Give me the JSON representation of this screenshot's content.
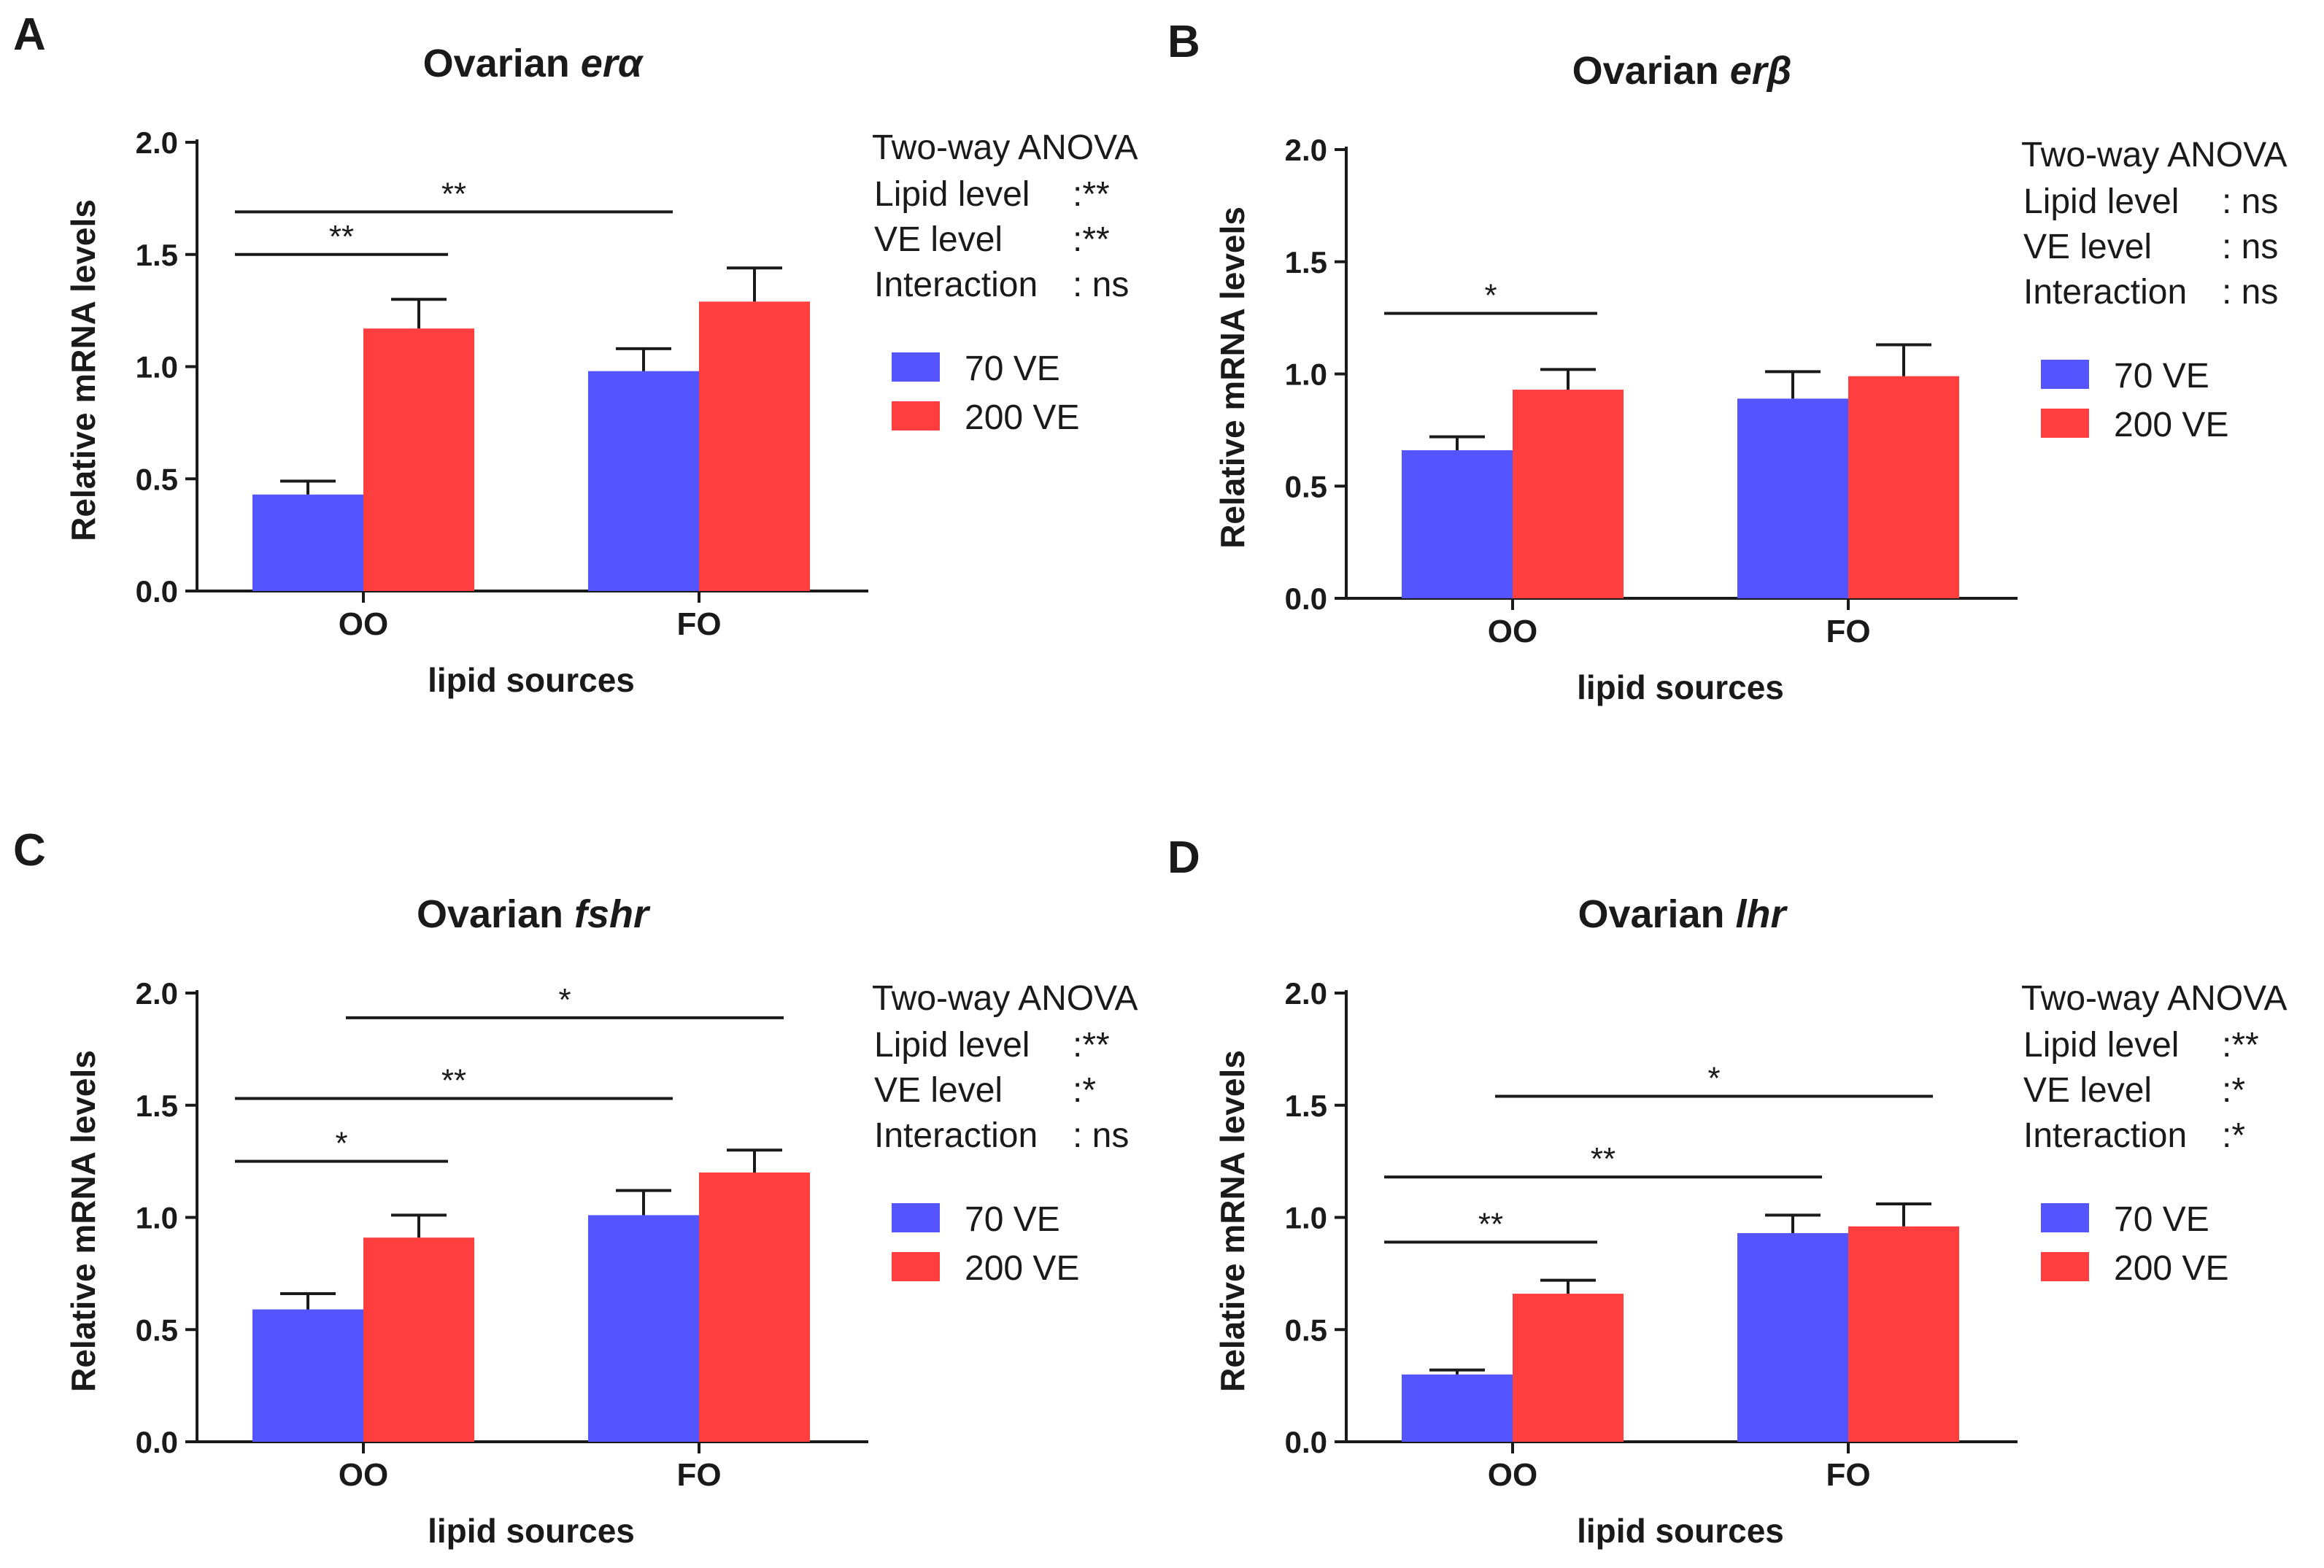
{
  "figure": {
    "legend": [
      {
        "name": "70   VE",
        "color": "#5555ff"
      },
      {
        "name": "200 VE",
        "color": "#ff3f3f"
      }
    ],
    "anova_title": "Two-way ANOVA"
  },
  "chart_data": [
    {
      "panel": "A",
      "type": "bar",
      "title_prefix": "Ovarian ",
      "title_gene": "erα",
      "xlabel": "lipid sources",
      "ylabel": "Relative mRNA  levels",
      "ylim": [
        0,
        2.0
      ],
      "yticks": [
        "0.0",
        "0.5",
        "1.0",
        "1.5",
        "2.0"
      ],
      "categories": [
        "OO",
        "FO"
      ],
      "series": [
        {
          "name": "70   VE",
          "values": [
            0.43,
            0.98
          ],
          "errors": [
            0.06,
            0.1
          ]
        },
        {
          "name": "200 VE",
          "values": [
            1.17,
            1.29
          ],
          "errors": [
            0.13,
            0.15
          ]
        }
      ],
      "significance": [
        {
          "from": [
            0,
            0
          ],
          "to": [
            0,
            1
          ],
          "label": "**",
          "y": 1.5
        },
        {
          "from": [
            0,
            0
          ],
          "to": [
            1,
            0
          ],
          "label": "**",
          "y": 1.69
        }
      ],
      "anova": [
        {
          "term": "Lipid level  ",
          "result": ":**"
        },
        {
          "term": "VE    level  ",
          "result": ":**"
        },
        {
          "term": "Interaction ",
          "result": ": ns"
        }
      ]
    },
    {
      "panel": "B",
      "type": "bar",
      "title_prefix": "Ovarian ",
      "title_gene": "erβ",
      "xlabel": "lipid sources",
      "ylabel": "Relative mRNA  levels",
      "ylim": [
        0,
        2.0
      ],
      "yticks": [
        "0.0",
        "0.5",
        "1.0",
        "1.5",
        "2.0"
      ],
      "categories": [
        "OO",
        "FO"
      ],
      "series": [
        {
          "name": "70   VE",
          "values": [
            0.66,
            0.89
          ],
          "errors": [
            0.06,
            0.12
          ]
        },
        {
          "name": "200 VE",
          "values": [
            0.93,
            0.99
          ],
          "errors": [
            0.09,
            0.14
          ]
        }
      ],
      "significance": [
        {
          "from": [
            0,
            0
          ],
          "to": [
            0,
            1
          ],
          "label": "*",
          "y": 1.27
        }
      ],
      "anova": [
        {
          "term": "Lipid level  ",
          "result": ": ns"
        },
        {
          "term": "VE    level  ",
          "result": ": ns"
        },
        {
          "term": "Interaction ",
          "result": ": ns"
        }
      ]
    },
    {
      "panel": "C",
      "type": "bar",
      "title_prefix": "Ovarian ",
      "title_gene": "fshr",
      "xlabel": "lipid sources",
      "ylabel": "Relative mRNA  levels",
      "ylim": [
        0,
        2.0
      ],
      "yticks": [
        "0.0",
        "0.5",
        "1.0",
        "1.5",
        "2.0"
      ],
      "categories": [
        "OO",
        "FO"
      ],
      "series": [
        {
          "name": "70   VE",
          "values": [
            0.59,
            1.01
          ],
          "errors": [
            0.07,
            0.11
          ]
        },
        {
          "name": "200 VE",
          "values": [
            0.91,
            1.2
          ],
          "errors": [
            0.1,
            0.1
          ]
        }
      ],
      "significance": [
        {
          "from": [
            0,
            0
          ],
          "to": [
            0,
            1
          ],
          "label": "*",
          "y": 1.25
        },
        {
          "from": [
            0,
            0
          ],
          "to": [
            1,
            0
          ],
          "label": "**",
          "y": 1.53
        },
        {
          "from": [
            0,
            1
          ],
          "to": [
            1,
            1
          ],
          "label": "*",
          "y": 1.89
        }
      ],
      "anova": [
        {
          "term": "Lipid level  ",
          "result": ":**"
        },
        {
          "term": "VE    level  ",
          "result": ":*"
        },
        {
          "term": "Interaction ",
          "result": ": ns"
        }
      ]
    },
    {
      "panel": "D",
      "type": "bar",
      "title_prefix": "Ovarian ",
      "title_gene": "lhr",
      "xlabel": "lipid sources",
      "ylabel": "Relative mRNA  levels",
      "ylim": [
        0,
        2.0
      ],
      "yticks": [
        "0.0",
        "0.5",
        "1.0",
        "1.5",
        "2.0"
      ],
      "categories": [
        "OO",
        "FO"
      ],
      "series": [
        {
          "name": "70   VE",
          "values": [
            0.3,
            0.93
          ],
          "errors": [
            0.02,
            0.08
          ]
        },
        {
          "name": "200 VE",
          "values": [
            0.66,
            0.96
          ],
          "errors": [
            0.06,
            0.1
          ]
        }
      ],
      "significance": [
        {
          "from": [
            0,
            0
          ],
          "to": [
            0,
            1
          ],
          "label": "**",
          "y": 0.89
        },
        {
          "from": [
            0,
            0
          ],
          "to": [
            1,
            0
          ],
          "label": "**",
          "y": 1.18
        },
        {
          "from": [
            0,
            1
          ],
          "to": [
            1,
            1
          ],
          "label": "*",
          "y": 1.54
        }
      ],
      "anova": [
        {
          "term": "Lipid level  ",
          "result": ":**"
        },
        {
          "term": "VE    level  ",
          "result": ":*"
        },
        {
          "term": "Interaction ",
          "result": ":*"
        }
      ]
    }
  ]
}
